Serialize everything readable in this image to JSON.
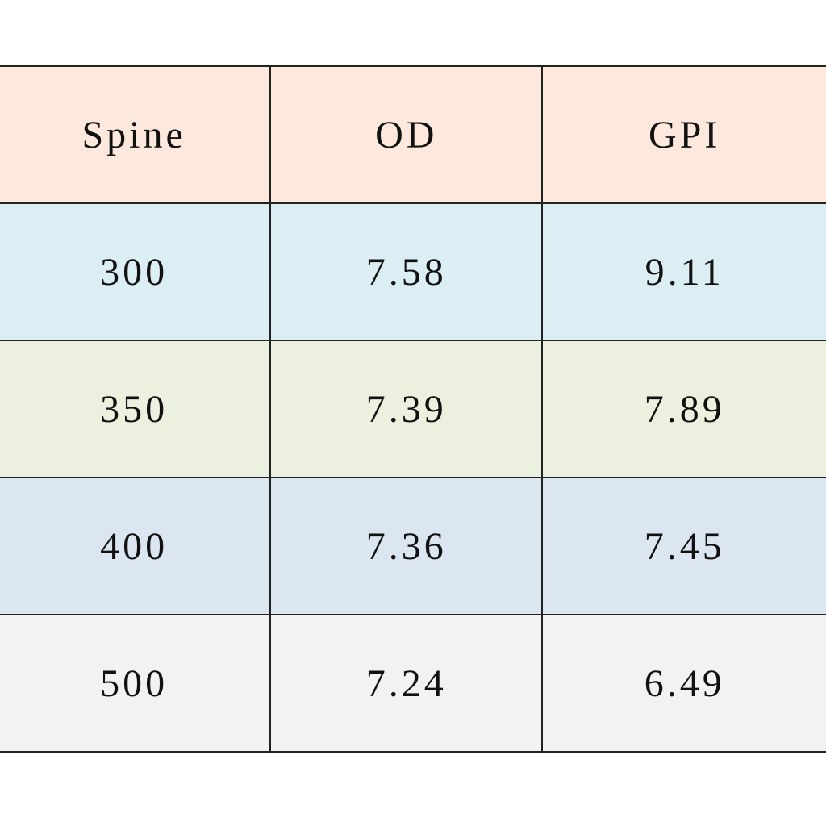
{
  "table": {
    "header": [
      "Spine",
      "OD",
      "GPI"
    ],
    "rows": [
      [
        "300",
        "7.58",
        "9.11"
      ],
      [
        "350",
        "7.39",
        "7.89"
      ],
      [
        "400",
        "7.36",
        "7.45"
      ],
      [
        "500",
        "7.24",
        "6.49"
      ]
    ]
  }
}
